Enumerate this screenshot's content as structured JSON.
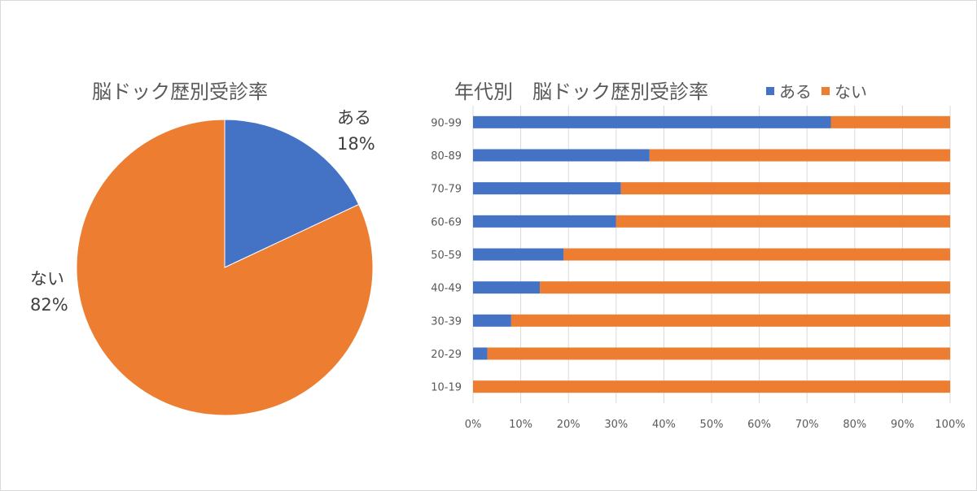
{
  "colors": {
    "yes": "#4472C4",
    "no": "#ED7D31",
    "grid": "#D9D9D9",
    "text": "#595959"
  },
  "chart_data": [
    {
      "type": "pie",
      "title": "脳ドック歴別受診率",
      "slices": [
        {
          "label": "ある",
          "value": 18,
          "display": "18%"
        },
        {
          "label": "ない",
          "value": 82,
          "display": "82%"
        }
      ]
    },
    {
      "type": "bar",
      "orientation": "horizontal",
      "stacked": "percent",
      "title": "年代別　脳ドック歴別受診率",
      "categories": [
        "90-99",
        "80-89",
        "70-79",
        "60-69",
        "50-59",
        "40-49",
        "30-39",
        "20-29",
        "10-19"
      ],
      "series": [
        {
          "name": "ある",
          "values": [
            75,
            37,
            31,
            30,
            19,
            14,
            8,
            3,
            0
          ]
        },
        {
          "name": "ない",
          "values": [
            25,
            63,
            69,
            70,
            81,
            86,
            92,
            97,
            100
          ]
        }
      ],
      "xlim": [
        0,
        100
      ],
      "x_ticks": [
        "0%",
        "10%",
        "20%",
        "30%",
        "40%",
        "50%",
        "60%",
        "70%",
        "80%",
        "90%",
        "100%"
      ],
      "grid": true,
      "legend": "top-right"
    }
  ]
}
